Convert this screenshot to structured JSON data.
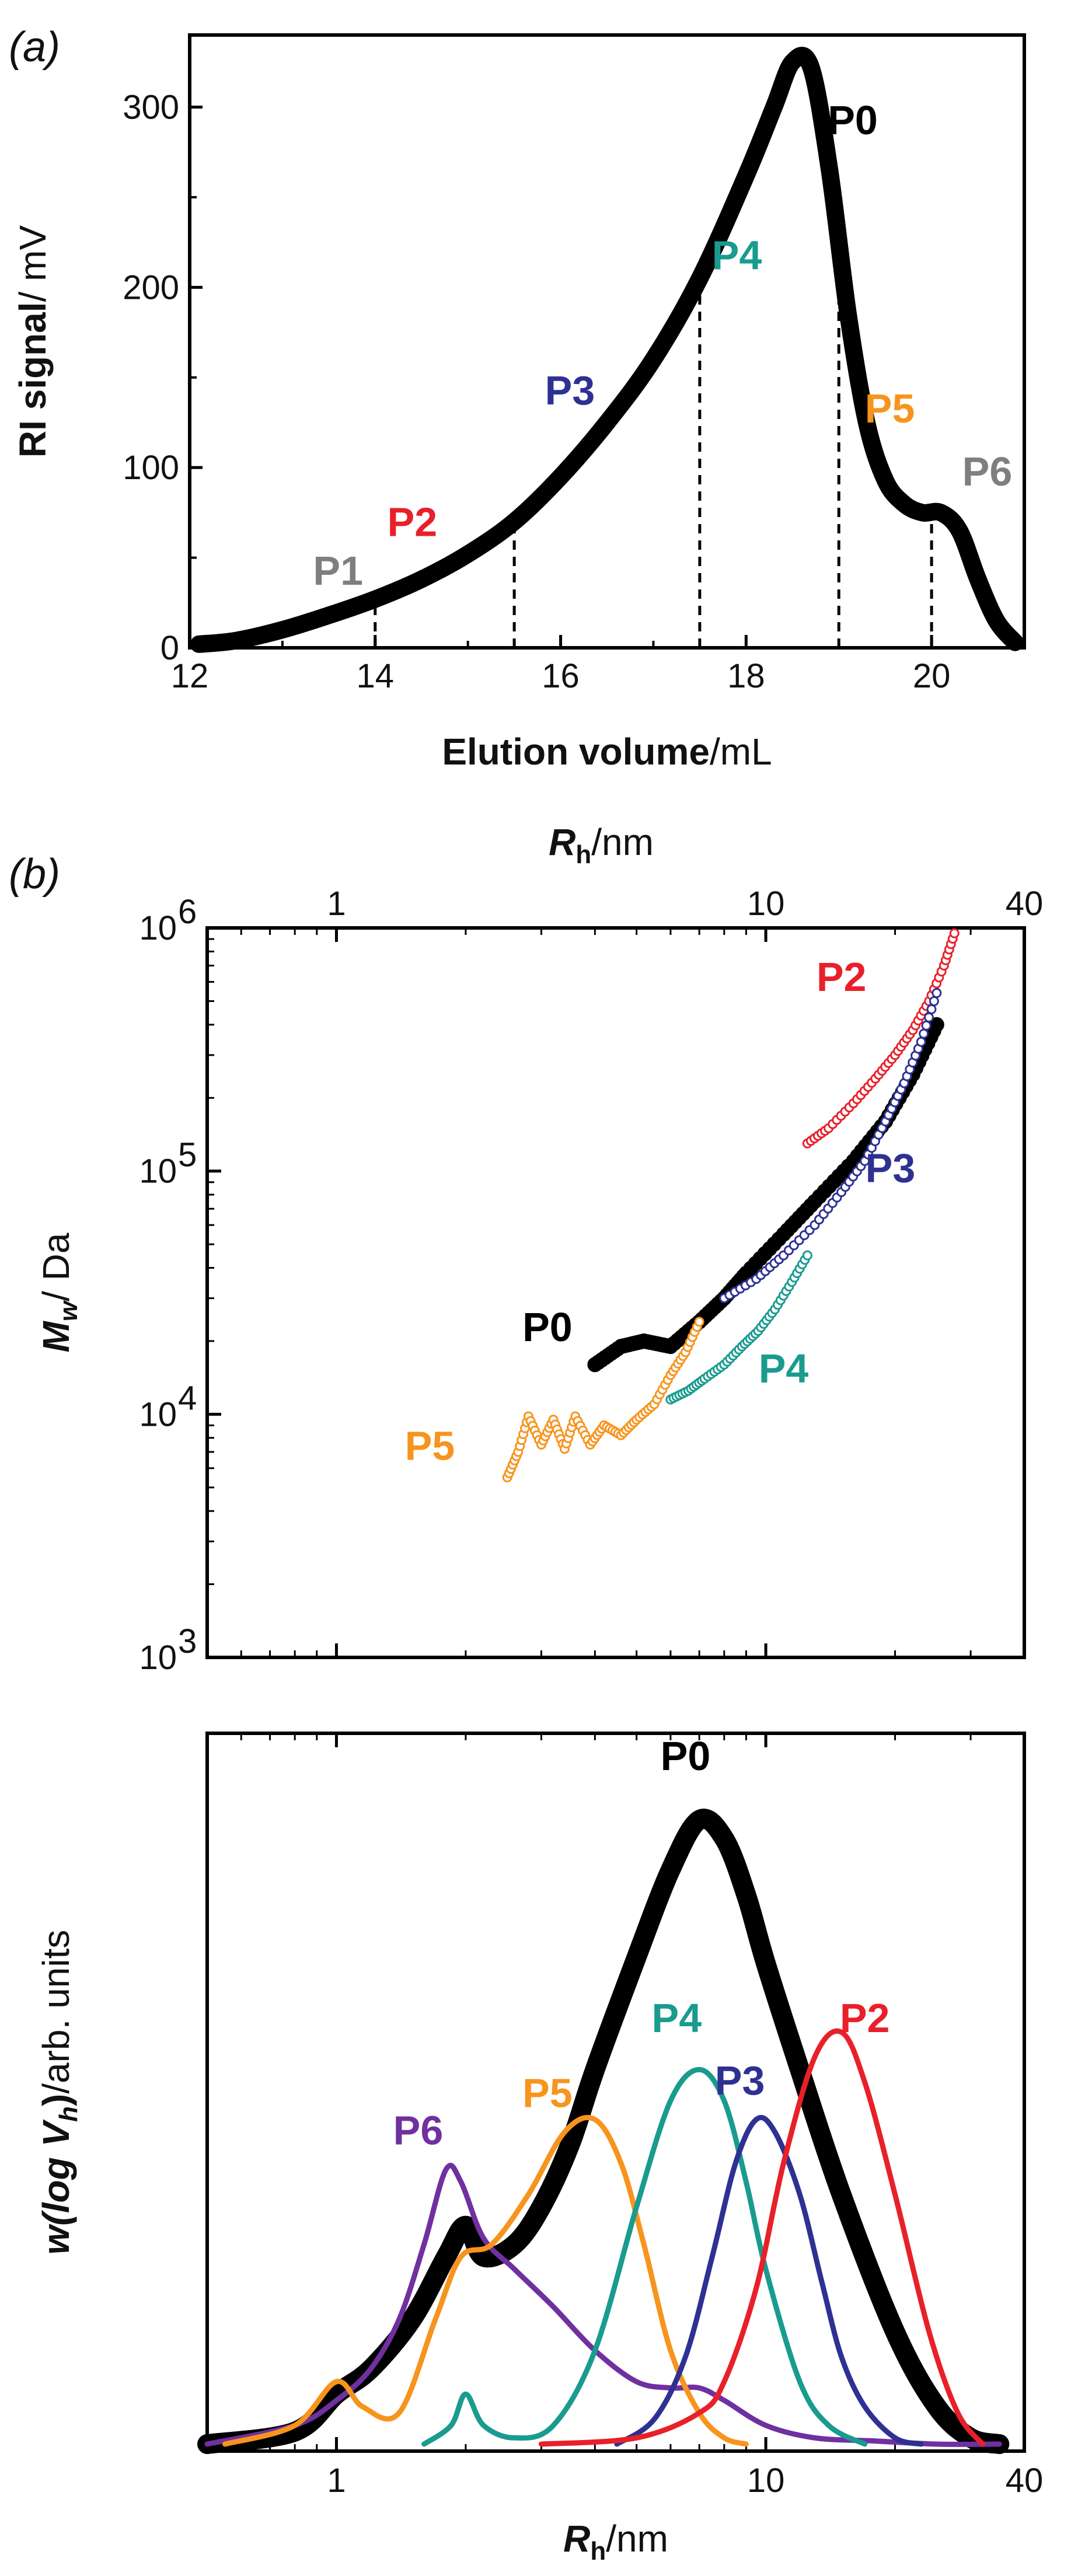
{
  "chart_data": [
    {
      "panel": "(a)",
      "type": "line",
      "xlabel_bold": "Elution volume",
      "xlabel_unit": "/mL",
      "ylabel_bold": "RI signal",
      "ylabel_unit": "/ mV",
      "xlim": [
        12,
        21
      ],
      "ylim": [
        0,
        340
      ],
      "xticks": [
        12,
        14,
        16,
        18,
        20
      ],
      "yticks": [
        0,
        100,
        200,
        300
      ],
      "series": [
        {
          "name": "P0",
          "color": "#000000",
          "x": [
            12.1,
            12.5,
            13.0,
            13.5,
            14.0,
            14.5,
            15.0,
            15.5,
            16.0,
            16.5,
            17.0,
            17.5,
            18.0,
            18.3,
            18.5,
            18.7,
            18.9,
            19.1,
            19.3,
            19.5,
            19.7,
            19.9,
            20.1,
            20.3,
            20.5,
            20.7,
            20.9
          ],
          "y": [
            2,
            4,
            10,
            18,
            27,
            38,
            52,
            70,
            95,
            125,
            160,
            205,
            262,
            300,
            325,
            322,
            265,
            185,
            125,
            93,
            80,
            75,
            75,
            65,
            38,
            15,
            3
          ]
        }
      ],
      "dividers_x": [
        14.0,
        15.5,
        17.5,
        19.0,
        20.0
      ],
      "fraction_labels": [
        {
          "text": "P1",
          "x": 13.6,
          "y": 35,
          "color": "#7f7f7f"
        },
        {
          "text": "P2",
          "x": 14.4,
          "y": 62,
          "color": "#e8202a"
        },
        {
          "text": "P3",
          "x": 16.1,
          "y": 135,
          "color": "#2e3192"
        },
        {
          "text": "P4",
          "x": 17.9,
          "y": 210,
          "color": "#1a9b8f"
        },
        {
          "text": "P5",
          "x": 19.55,
          "y": 125,
          "color": "#f7941d"
        },
        {
          "text": "P6",
          "x": 20.6,
          "y": 90,
          "color": "#7f7f7f"
        },
        {
          "text": "P0",
          "x": 19.15,
          "y": 285,
          "color": "#000000"
        }
      ]
    },
    {
      "panel": "(b)",
      "type": "scatter",
      "top_axis_label_bold": "R",
      "top_axis_label_sub": "h",
      "top_axis_label_unit": "/nm",
      "ylabel_bold": "M",
      "ylabel_sub": "w",
      "ylabel_unit": "/ Da",
      "xscale": "log",
      "xlim": [
        0.5,
        40
      ],
      "xticks": [
        1,
        10,
        40
      ],
      "yscale": "log",
      "ylim": [
        1000,
        1000000
      ],
      "yticks": [
        1000,
        10000,
        100000,
        1000000
      ],
      "ytick_base": "10",
      "ytick_exps": [
        "3",
        "4",
        "5",
        "6"
      ],
      "series": [
        {
          "name": "P0",
          "color": "#000000",
          "x": [
            4.0,
            4.6,
            5.2,
            6.0,
            7.0,
            8.0,
            9.0,
            11.0,
            13.0,
            16.0,
            19.0,
            22.0,
            25.0
          ],
          "y": [
            16000,
            19000,
            20000,
            19000,
            24000,
            30000,
            38000,
            55000,
            75000,
            110000,
            160000,
            250000,
            400000
          ]
        },
        {
          "name": "P2",
          "color": "#e8202a",
          "x": [
            12.5,
            14.0,
            16.0,
            18.0,
            20.0,
            22.0,
            24.0,
            26.0,
            27.5
          ],
          "y": [
            130000,
            150000,
            190000,
            240000,
            300000,
            380000,
            500000,
            700000,
            950000
          ]
        },
        {
          "name": "P3",
          "color": "#2e3192",
          "x": [
            8.0,
            9.5,
            11.0,
            13.0,
            15.0,
            17.0,
            19.0,
            21.0,
            23.0,
            25.0
          ],
          "y": [
            30000,
            36000,
            45000,
            60000,
            82000,
            110000,
            160000,
            230000,
            340000,
            540000
          ]
        },
        {
          "name": "P4",
          "color": "#1a9b8f",
          "x": [
            6.0,
            6.6,
            7.2,
            8.0,
            8.8,
            9.6,
            10.5,
            11.5,
            12.5
          ],
          "y": [
            11500,
            12500,
            14000,
            16000,
            19000,
            22000,
            27000,
            35000,
            45000
          ]
        },
        {
          "name": "P5",
          "color": "#f7941d",
          "x": [
            2.5,
            2.65,
            2.8,
            3.0,
            3.2,
            3.4,
            3.6,
            3.9,
            4.2,
            4.6,
            5.0,
            5.5,
            6.0,
            6.5,
            7.0
          ],
          "y": [
            5500,
            7000,
            9800,
            7500,
            9500,
            7200,
            9800,
            7500,
            9000,
            8200,
            9500,
            11000,
            14500,
            18000,
            24000
          ]
        }
      ],
      "labels": [
        {
          "text": "P2",
          "x": 15.0,
          "y": 550000,
          "color": "#e8202a"
        },
        {
          "text": "P3",
          "x": 19.5,
          "y": 90000,
          "color": "#2e3192"
        },
        {
          "text": "P0",
          "x": 3.1,
          "y": 20000,
          "color": "#000000"
        },
        {
          "text": "P4",
          "x": 11.0,
          "y": 13500,
          "color": "#1a9b8f"
        },
        {
          "text": "P5",
          "x": 1.65,
          "y": 6500,
          "color": "#f7941d"
        }
      ]
    },
    {
      "panel": "",
      "type": "line",
      "xlabel_bold": "R",
      "xlabel_sub": "h",
      "xlabel_unit": "/nm",
      "ylabel_bold": "w(log V",
      "ylabel_sub": "h",
      "ylabel_tail": ")",
      "ylabel_unit": "/arb. units",
      "xscale": "log",
      "xlim": [
        0.5,
        40
      ],
      "xticks": [
        1,
        10,
        40
      ],
      "ylim": [
        0,
        1.0
      ],
      "series": [
        {
          "name": "P0",
          "color": "#000000",
          "x": [
            0.5,
            0.8,
            1.0,
            1.2,
            1.5,
            1.8,
            2.0,
            2.2,
            2.6,
            3.0,
            3.5,
            4.0,
            5.0,
            6.0,
            7.0,
            8.0,
            9.0,
            10.0,
            12.0,
            15.0,
            20.0,
            25.0,
            30.0,
            35.0
          ],
          "y": [
            0,
            0.02,
            0.08,
            0.12,
            0.2,
            0.3,
            0.35,
            0.3,
            0.32,
            0.38,
            0.48,
            0.6,
            0.78,
            0.92,
            1.0,
            0.97,
            0.88,
            0.77,
            0.6,
            0.4,
            0.18,
            0.06,
            0.01,
            0
          ]
        },
        {
          "name": "P2",
          "color": "#e8202a",
          "x": [
            3.0,
            5.0,
            7.0,
            8.0,
            9.5,
            11.0,
            13.0,
            15.0,
            17.0,
            20.0,
            24.0,
            28.0,
            32.0
          ],
          "y": [
            0,
            0.01,
            0.05,
            0.1,
            0.25,
            0.45,
            0.62,
            0.66,
            0.58,
            0.4,
            0.18,
            0.05,
            0
          ]
        },
        {
          "name": "P3",
          "color": "#2e3192",
          "x": [
            4.5,
            5.5,
            6.5,
            7.5,
            8.5,
            9.5,
            10.5,
            12.0,
            13.5,
            15.0,
            17.0,
            20.0,
            23.0
          ],
          "y": [
            0,
            0.04,
            0.14,
            0.3,
            0.45,
            0.52,
            0.5,
            0.4,
            0.26,
            0.14,
            0.06,
            0.01,
            0
          ]
        },
        {
          "name": "P4",
          "color": "#1a9b8f",
          "x": [
            1.6,
            1.85,
            2.0,
            2.2,
            2.6,
            3.2,
            4.0,
            5.0,
            6.0,
            7.0,
            8.0,
            9.0,
            10.0,
            12.0,
            14.0,
            17.0
          ],
          "y": [
            0,
            0.03,
            0.08,
            0.03,
            0.01,
            0.03,
            0.15,
            0.38,
            0.55,
            0.6,
            0.55,
            0.42,
            0.28,
            0.1,
            0.03,
            0
          ]
        },
        {
          "name": "P5",
          "color": "#f7941d",
          "x": [
            0.55,
            0.8,
            1.0,
            1.15,
            1.4,
            1.7,
            1.95,
            2.3,
            2.8,
            3.4,
            4.0,
            4.6,
            5.2,
            6.0,
            7.0,
            8.0,
            9.0
          ],
          "y": [
            0,
            0.03,
            0.1,
            0.06,
            0.05,
            0.2,
            0.3,
            0.32,
            0.4,
            0.5,
            0.52,
            0.45,
            0.32,
            0.15,
            0.05,
            0.01,
            0
          ]
        },
        {
          "name": "P6",
          "color": "#7030a0",
          "x": [
            0.5,
            0.8,
            1.0,
            1.2,
            1.4,
            1.6,
            1.8,
            1.95,
            2.2,
            2.6,
            3.2,
            4.0,
            5.0,
            6.0,
            7.0,
            8.0,
            10.0,
            13.0,
            18.0,
            25.0,
            35.0
          ],
          "y": [
            0,
            0.03,
            0.07,
            0.12,
            0.2,
            0.32,
            0.44,
            0.42,
            0.33,
            0.28,
            0.22,
            0.15,
            0.1,
            0.09,
            0.09,
            0.07,
            0.03,
            0.01,
            0.005,
            0,
            0
          ]
        }
      ],
      "labels": [
        {
          "text": "P0",
          "x": 6.5,
          "y": 1.08,
          "color": "#000000"
        },
        {
          "text": "P2",
          "x": 17.0,
          "y": 0.66,
          "color": "#e8202a"
        },
        {
          "text": "P4",
          "x": 6.2,
          "y": 0.66,
          "color": "#1a9b8f"
        },
        {
          "text": "P3",
          "x": 8.7,
          "y": 0.56,
          "color": "#2e3192"
        },
        {
          "text": "P5",
          "x": 3.1,
          "y": 0.54,
          "color": "#f7941d"
        },
        {
          "text": "P6",
          "x": 1.55,
          "y": 0.48,
          "color": "#7030a0"
        }
      ]
    }
  ]
}
